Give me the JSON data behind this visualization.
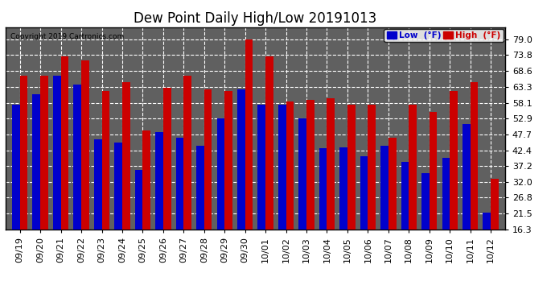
{
  "title": "Dew Point Daily High/Low 20191013",
  "copyright": "Copyright 2019 Cartronics.com",
  "dates": [
    "09/19",
    "09/20",
    "09/21",
    "09/22",
    "09/23",
    "09/24",
    "09/25",
    "09/26",
    "09/27",
    "09/28",
    "09/29",
    "09/30",
    "10/01",
    "10/02",
    "10/03",
    "10/04",
    "10/05",
    "10/06",
    "10/07",
    "10/08",
    "10/09",
    "10/10",
    "10/11",
    "10/12"
  ],
  "low_values": [
    57.5,
    61.0,
    67.0,
    64.0,
    46.0,
    45.0,
    36.0,
    48.5,
    46.5,
    44.0,
    53.0,
    62.5,
    57.5,
    57.5,
    53.0,
    43.0,
    43.5,
    40.5,
    44.0,
    38.5,
    35.0,
    40.0,
    51.0,
    22.0
  ],
  "high_values": [
    67.0,
    67.0,
    73.5,
    72.0,
    62.0,
    65.0,
    49.0,
    63.0,
    67.0,
    62.5,
    62.0,
    79.0,
    73.5,
    58.5,
    59.0,
    59.5,
    57.5,
    57.5,
    46.5,
    57.5,
    55.0,
    62.0,
    65.0,
    33.0
  ],
  "low_color": "#0000cc",
  "high_color": "#cc0000",
  "bg_color": "#ffffff",
  "plot_bg_color": "#606060",
  "grid_color": "#ffffff",
  "ylim_min": 16.3,
  "ylim_max": 83.0,
  "yticks": [
    16.3,
    21.5,
    26.8,
    32.0,
    37.2,
    42.4,
    47.7,
    52.9,
    58.1,
    63.3,
    68.6,
    73.8,
    79.0
  ],
  "bar_width": 0.38,
  "title_fontsize": 12,
  "tick_fontsize": 8,
  "legend_low_label": "Low  (°F)",
  "legend_high_label": "High  (°F)"
}
